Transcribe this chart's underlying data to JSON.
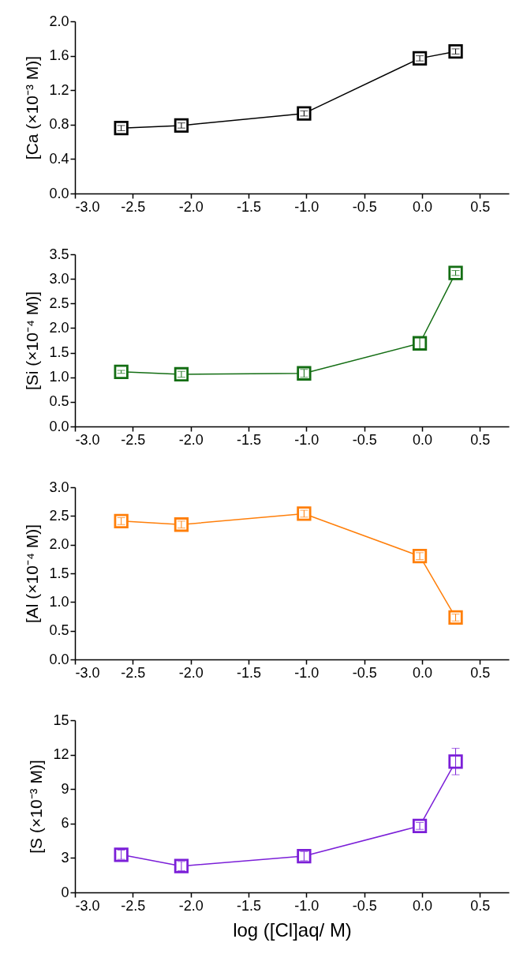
{
  "chart_data": [
    {
      "type": "line",
      "ylabel": "[Ca (×10⁻³ M)]",
      "x": [
        -2.6,
        -2.08,
        -1.02,
        -0.02,
        0.29
      ],
      "marker": "square",
      "grid": false,
      "series": [
        {
          "color": "#000000",
          "values": [
            0.76,
            0.79,
            0.93,
            1.57,
            1.65
          ],
          "errors": [
            0.03,
            0.03,
            0.03,
            0.03,
            0.03
          ]
        }
      ],
      "xlim": [
        -3.0,
        0.75
      ],
      "xticks": [
        {
          "value": -3,
          "label": "-3.0"
        },
        {
          "value": -2.5,
          "label": "-2.5"
        },
        {
          "value": -2,
          "label": "-2.0"
        },
        {
          "value": -1.5,
          "label": "-1.5"
        },
        {
          "value": -1,
          "label": "-1.0"
        },
        {
          "value": -0.5,
          "label": "-0.5"
        },
        {
          "value": 0,
          "label": "0.0"
        },
        {
          "value": 0.5,
          "label": "0.5"
        }
      ],
      "ylim": [
        0,
        2.0
      ],
      "yticks": [
        {
          "value": 0,
          "label": "0.0"
        },
        0.4,
        0.8,
        1.2,
        1.6,
        {
          "value": 2,
          "label": "2.0"
        }
      ]
    },
    {
      "type": "line",
      "ylabel": "[Si (×10⁻⁴ M)]",
      "x": [
        -2.6,
        -2.08,
        -1.02,
        -0.02,
        0.29
      ],
      "marker": "square",
      "grid": false,
      "series": [
        {
          "color": "#146e14",
          "values": [
            1.11,
            1.06,
            1.08,
            1.69,
            3.12
          ],
          "errors": [
            0.03,
            0.06,
            0.08,
            0.12,
            0.05
          ]
        }
      ],
      "xlim": [
        -3.0,
        0.75
      ],
      "xticks": [
        {
          "value": -3,
          "label": "-3.0"
        },
        {
          "value": -2.5,
          "label": "-2.5"
        },
        {
          "value": -2,
          "label": "-2.0"
        },
        {
          "value": -1.5,
          "label": "-1.5"
        },
        {
          "value": -1,
          "label": "-1.0"
        },
        {
          "value": -0.5,
          "label": "-0.5"
        },
        {
          "value": 0,
          "label": "0.0"
        },
        {
          "value": 0.5,
          "label": "0.5"
        }
      ],
      "ylim": [
        0,
        3.5
      ],
      "yticks": [
        {
          "value": 0,
          "label": "0.0"
        },
        0.5,
        {
          "value": 1,
          "label": "1.0"
        },
        1.5,
        {
          "value": 2,
          "label": "2.0"
        },
        2.5,
        {
          "value": 3,
          "label": "3.0"
        },
        3.5
      ]
    },
    {
      "type": "line",
      "ylabel": "[Al (×10⁻⁴ M)]",
      "x": [
        -2.6,
        -2.08,
        -1.02,
        -0.02,
        0.29
      ],
      "marker": "square",
      "grid": false,
      "series": [
        {
          "color": "#ff7f0a",
          "values": [
            2.41,
            2.35,
            2.54,
            1.8,
            0.73
          ],
          "errors": [
            0.06,
            0.06,
            0.06,
            0.06,
            0.06
          ]
        }
      ],
      "xlim": [
        -3.0,
        0.75
      ],
      "xticks": [
        {
          "value": -3,
          "label": "-3.0"
        },
        {
          "value": -2.5,
          "label": "-2.5"
        },
        {
          "value": -2,
          "label": "-2.0"
        },
        {
          "value": -1.5,
          "label": "-1.5"
        },
        {
          "value": -1,
          "label": "-1.0"
        },
        {
          "value": -0.5,
          "label": "-0.5"
        },
        {
          "value": 0,
          "label": "0.0"
        },
        {
          "value": 0.5,
          "label": "0.5"
        }
      ],
      "ylim": [
        0,
        3.0
      ],
      "yticks": [
        {
          "value": 0,
          "label": "0.0"
        },
        0.5,
        {
          "value": 1,
          "label": "1.0"
        },
        1.5,
        {
          "value": 2,
          "label": "2.0"
        },
        2.5,
        {
          "value": 3,
          "label": "3.0"
        }
      ]
    },
    {
      "type": "line",
      "ylabel": "[S (×10⁻³ M)]",
      "xlabel": "log ([Cl]aq/ M)",
      "x": [
        -2.6,
        -2.08,
        -1.02,
        -0.02,
        0.29
      ],
      "marker": "square",
      "grid": false,
      "series": [
        {
          "color": "#7b1fd8",
          "values": [
            3.28,
            2.29,
            3.16,
            5.79,
            11.4
          ],
          "errors": [
            0.4,
            0.4,
            0.4,
            0.3,
            1.15
          ]
        }
      ],
      "xlim": [
        -3.0,
        0.75
      ],
      "xticks": [
        {
          "value": -3,
          "label": "-3.0"
        },
        {
          "value": -2.5,
          "label": "-2.5"
        },
        {
          "value": -2,
          "label": "-2.0"
        },
        {
          "value": -1.5,
          "label": "-1.5"
        },
        {
          "value": -1,
          "label": "-1.0"
        },
        {
          "value": -0.5,
          "label": "-0.5"
        },
        {
          "value": 0,
          "label": "0.0"
        },
        {
          "value": 0.5,
          "label": "0.5"
        }
      ],
      "ylim": [
        0,
        15
      ],
      "yticks": [
        0,
        3,
        6,
        9,
        12,
        15
      ]
    }
  ]
}
